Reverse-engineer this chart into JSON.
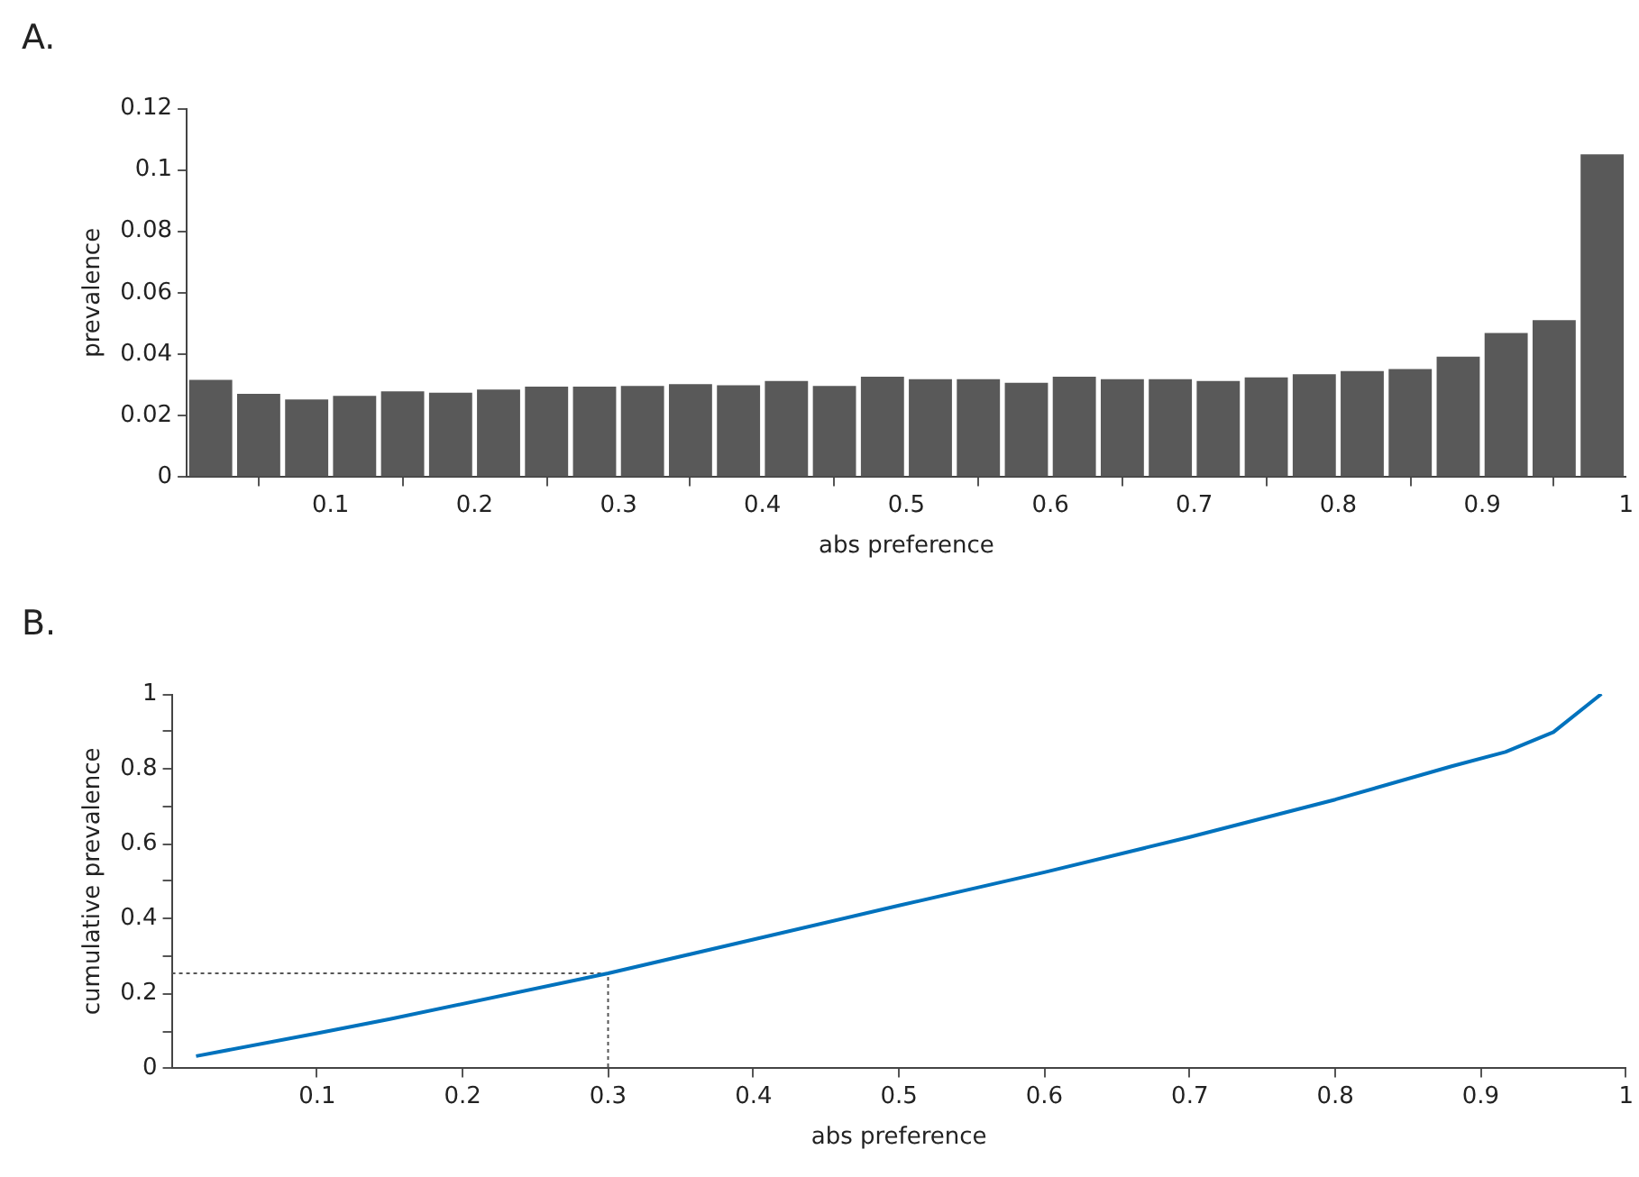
{
  "chart_data": [
    {
      "type": "histogram",
      "title": "A.",
      "xlabel": "abs preference",
      "ylabel": "prevalence",
      "color": "#595959",
      "bins": [
        0,
        0.0333,
        0.0667,
        0.1,
        0.1333,
        0.1667,
        0.2,
        0.2333,
        0.2667,
        0.3,
        0.3333,
        0.3667,
        0.4,
        0.4333,
        0.4667,
        0.5,
        0.5333,
        0.5667,
        0.6,
        0.6333,
        0.6667,
        0.7,
        0.7333,
        0.7667,
        0.8,
        0.8333,
        0.8667,
        0.9,
        0.9333,
        0.9667,
        1
      ],
      "values": [
        0.0317,
        0.0271,
        0.0253,
        0.0265,
        0.0279,
        0.0275,
        0.0285,
        0.0295,
        0.0295,
        0.0297,
        0.0303,
        0.0299,
        0.0313,
        0.0297,
        0.0327,
        0.0319,
        0.0319,
        0.0307,
        0.0327,
        0.0319,
        0.0319,
        0.0313,
        0.0325,
        0.0335,
        0.0345,
        0.0352,
        0.0392,
        0.0469,
        0.0511,
        0.105
      ],
      "xlim": [
        0,
        1
      ],
      "xticks": [
        0.1,
        0.2,
        0.3,
        0.4,
        0.5,
        0.6,
        0.7,
        0.8,
        0.9,
        1
      ],
      "ylim": [
        0,
        0.12
      ],
      "yticks": [
        0,
        0.02,
        0.04,
        0.06,
        0.08,
        0.1,
        0.12
      ],
      "grid": false,
      "legend": false
    },
    {
      "type": "line",
      "title": "B.",
      "xlabel": "abs preference",
      "ylabel": "cumulative prevalence",
      "grid": false,
      "legend": false,
      "series": [
        {
          "color": "#0072bd",
          "x": [
            0.0167,
            0.1,
            0.15,
            0.3,
            0.5,
            0.6,
            0.7,
            0.8,
            0.88,
            0.917,
            0.95,
            0.983
          ],
          "values": [
            0.033,
            0.094,
            0.132,
            0.254,
            0.435,
            0.524,
            0.618,
            0.718,
            0.807,
            0.845,
            0.898,
            1.0
          ]
        },
        {
          "color": "#555555",
          "line_style": "dotted",
          "x": [
            0,
            0.3,
            0.3
          ],
          "values": [
            0.254,
            0.254,
            0
          ]
        }
      ],
      "xlim": [
        0,
        1
      ],
      "xticks": [
        0.1,
        0.2,
        0.3,
        0.4,
        0.5,
        0.6,
        0.7,
        0.8,
        0.9,
        1
      ],
      "ylim": [
        0,
        1
      ],
      "yticks": [
        0,
        {
          "value": 0.1,
          "label": null
        },
        0.2,
        {
          "value": 0.3,
          "label": null
        },
        0.4,
        {
          "value": 0.5,
          "label": null
        },
        0.6,
        {
          "value": 0.7,
          "label": null
        },
        0.8,
        {
          "value": 0.9,
          "label": null
        },
        1
      ]
    }
  ]
}
